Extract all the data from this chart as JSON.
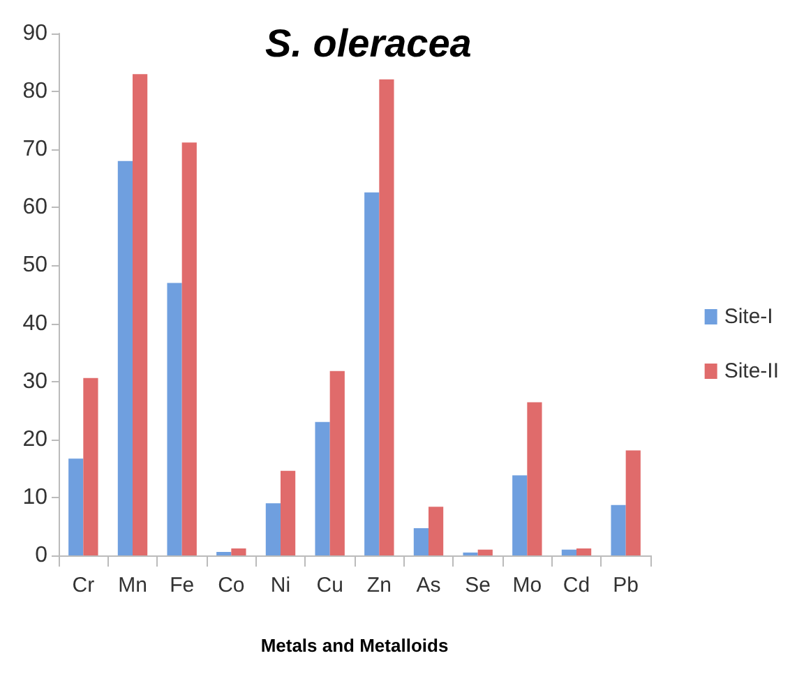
{
  "chart_data": {
    "type": "bar",
    "title": "S. oleracea",
    "xlabel": "Metals and Metalloids",
    "categories": [
      "Cr",
      "Mn",
      "Fe",
      "Co",
      "Ni",
      "Cu",
      "Zn",
      "As",
      "Se",
      "Mo",
      "Cd",
      "Pb"
    ],
    "series": [
      {
        "name": "Site-I",
        "color": "#6f9fdf",
        "values": [
          16.7,
          68,
          47,
          0.6,
          9,
          23,
          62.6,
          4.7,
          0.5,
          13.8,
          1.0,
          8.7
        ]
      },
      {
        "name": "Site-II",
        "color": "#e06b6b",
        "values": [
          30.6,
          83,
          71.2,
          1.2,
          14.6,
          31.8,
          82.1,
          8.4,
          1.0,
          26.4,
          1.2,
          18.1
        ]
      }
    ],
    "ylim": [
      0,
      90
    ],
    "yticks": [
      0,
      10,
      20,
      30,
      40,
      50,
      60,
      70,
      80,
      90
    ],
    "grid": false,
    "legend": "right"
  }
}
